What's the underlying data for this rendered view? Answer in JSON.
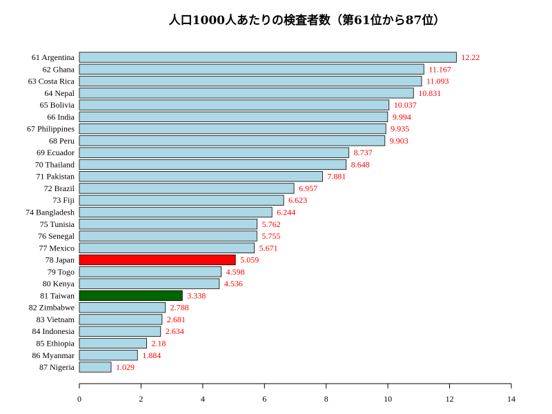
{
  "chart_data": {
    "type": "bar",
    "orientation": "horizontal",
    "title": "人口1000人あたりの検査者数（第61位から87位）",
    "xlabel": "",
    "ylabel": "",
    "xlim": [
      0,
      14
    ],
    "xticks": [
      0,
      2,
      4,
      6,
      8,
      10,
      12,
      14
    ],
    "categories": [
      "61 Argentina",
      "62 Ghana",
      "63 Costa Rica",
      "64 Nepal",
      "65 Bolivia",
      "66 India",
      "67 Philippines",
      "68 Peru",
      "69 Ecuador",
      "70 Thailand",
      "71 Pakistan",
      "72 Brazil",
      "73 Fiji",
      "74 Bangladesh",
      "75 Tunisia",
      "76 Senegal",
      "77 Mexico",
      "78 Japan",
      "79 Togo",
      "80 Kenya",
      "81 Taiwan",
      "82 Zimbabwe",
      "83 Vietnam",
      "84 Indonesia",
      "85 Ethiopia",
      "86 Myanmar",
      "87 Nigeria"
    ],
    "values": [
      12.22,
      11.167,
      11.093,
      10.831,
      10.037,
      9.994,
      9.935,
      9.903,
      8.737,
      8.648,
      7.881,
      6.957,
      6.623,
      6.244,
      5.762,
      5.755,
      5.671,
      5.059,
      4.598,
      4.536,
      3.338,
      2.788,
      2.681,
      2.634,
      2.18,
      1.884,
      1.029
    ],
    "value_labels": [
      "12.22",
      "11.167",
      "11.093",
      "10.831",
      "10.037",
      "9.994",
      "9.935",
      "9.903",
      "8.737",
      "8.648",
      "7.881",
      "6.957",
      "6.623",
      "6.244",
      "5.762",
      "5.755",
      "5.671",
      "5.059",
      "4.598",
      "4.536",
      "3.338",
      "2.788",
      "2.681",
      "2.634",
      "2.18",
      "1.884",
      "1.029"
    ],
    "grid": false,
    "colors": {
      "default_bar": "#add8e6",
      "highlight_japan": "#ff0000",
      "highlight_taiwan": "#006400",
      "value_label": "#ff0000"
    },
    "highlights": {
      "78 Japan": "#ff0000",
      "81 Taiwan": "#006400"
    }
  }
}
